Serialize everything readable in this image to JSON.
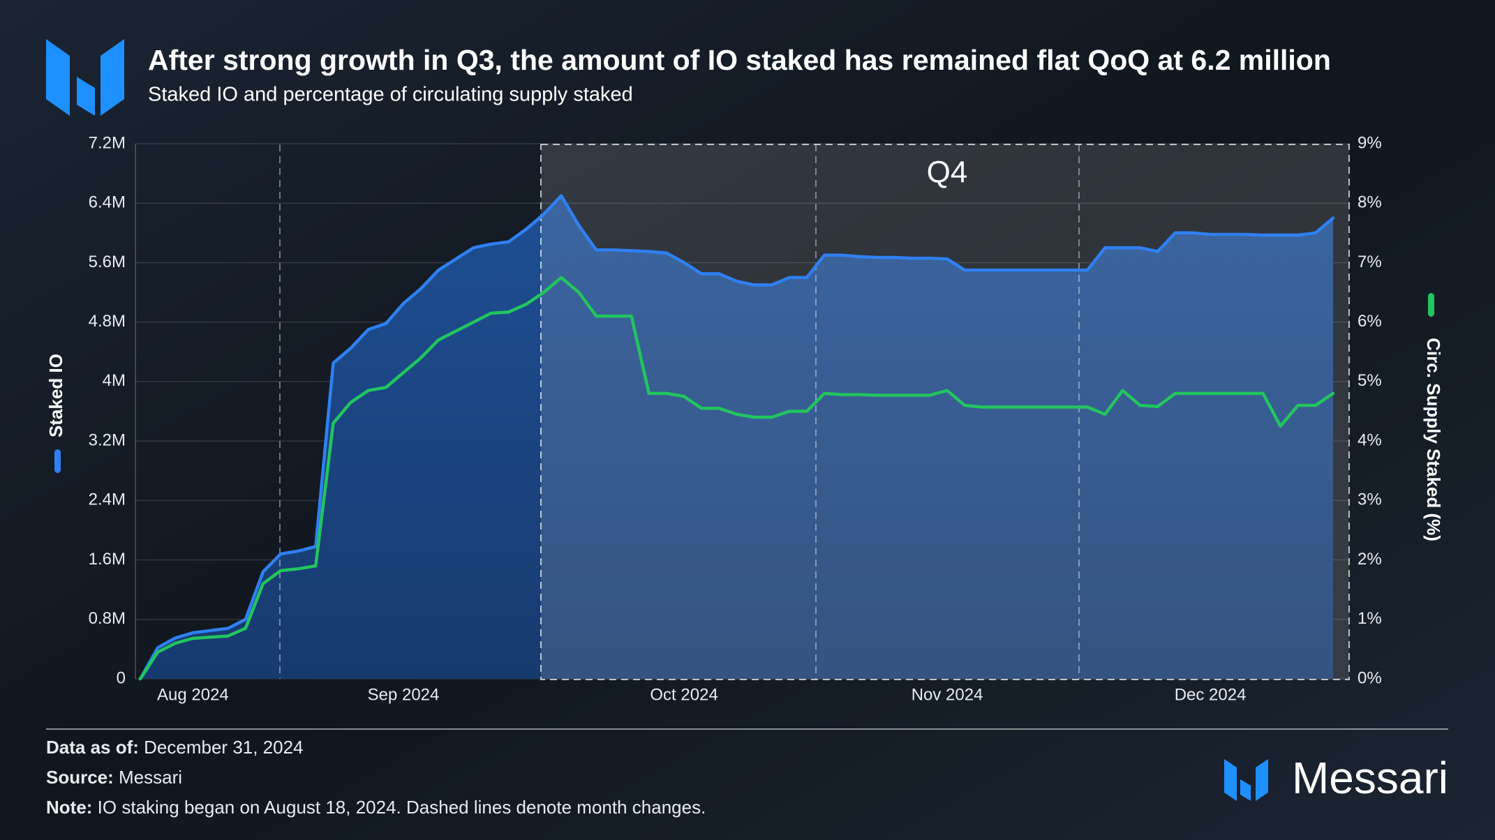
{
  "chart_data": {
    "type": "line",
    "title": "After strong growth in Q3, the amount of IO staked has remained flat QoQ at 6.2 million",
    "subtitle": "Staked IO and percentage of circulating supply staked",
    "annotation": "Q4",
    "categories": [
      null,
      null,
      null,
      "Aug 2024",
      null,
      null,
      null,
      null,
      null,
      null,
      null,
      null,
      null,
      null,
      null,
      "Sep 2024",
      null,
      null,
      null,
      null,
      null,
      null,
      null,
      null,
      null,
      null,
      null,
      null,
      null,
      null,
      null,
      "Oct 2024",
      null,
      null,
      null,
      null,
      null,
      null,
      null,
      null,
      null,
      null,
      null,
      null,
      null,
      null,
      "Nov 2024",
      null,
      null,
      null,
      null,
      null,
      null,
      null,
      null,
      null,
      null,
      null,
      null,
      null,
      null,
      "Dec 2024",
      null,
      null,
      null,
      null,
      null,
      null,
      null
    ],
    "series": [
      {
        "name": "Staked IO",
        "color": "#2f80f2",
        "axis": "y",
        "values": [
          0,
          0.42,
          0.55,
          0.62,
          0.65,
          0.68,
          0.8,
          1.44,
          1.68,
          1.72,
          1.78,
          4.25,
          4.45,
          4.7,
          4.78,
          5.05,
          5.25,
          5.5,
          5.65,
          5.8,
          5.85,
          5.88,
          6.05,
          6.25,
          6.5,
          6.1,
          5.77,
          5.77,
          5.76,
          5.75,
          5.73,
          5.6,
          5.45,
          5.45,
          5.35,
          5.3,
          5.3,
          5.4,
          5.4,
          5.7,
          5.7,
          5.68,
          5.67,
          5.67,
          5.66,
          5.66,
          5.65,
          5.5,
          5.5,
          5.5,
          5.5,
          5.5,
          5.5,
          5.5,
          5.5,
          5.8,
          5.8,
          5.8,
          5.75,
          6.0,
          6.0,
          5.98,
          5.98,
          5.98,
          5.97,
          5.97,
          5.97,
          6.0,
          6.2
        ]
      },
      {
        "name": "Circ. Supply Staked (%)",
        "color": "#22c55e",
        "axis": "y2",
        "values": [
          0,
          0.45,
          0.6,
          0.68,
          0.7,
          0.72,
          0.85,
          1.6,
          1.82,
          1.85,
          1.9,
          4.3,
          4.65,
          4.85,
          4.9,
          5.15,
          5.4,
          5.7,
          5.85,
          6.0,
          6.15,
          6.17,
          6.3,
          6.5,
          6.75,
          6.5,
          6.1,
          6.1,
          6.1,
          4.8,
          4.8,
          4.75,
          4.55,
          4.55,
          4.45,
          4.4,
          4.4,
          4.5,
          4.5,
          4.8,
          4.78,
          4.78,
          4.77,
          4.77,
          4.77,
          4.77,
          4.85,
          4.6,
          4.57,
          4.57,
          4.57,
          4.57,
          4.57,
          4.57,
          4.57,
          4.45,
          4.85,
          4.6,
          4.58,
          4.8,
          4.8,
          4.8,
          4.8,
          4.8,
          4.8,
          4.25,
          4.6,
          4.6,
          4.8
        ]
      }
    ],
    "ylim": [
      0,
      7.2
    ],
    "yticks": [
      0,
      {
        "value": 0.8,
        "label": "0.8M"
      },
      {
        "value": 1.6,
        "label": "1.6M"
      },
      {
        "value": 2.4,
        "label": "2.4M"
      },
      {
        "value": 3.2,
        "label": "3.2M"
      },
      {
        "value": 4,
        "label": "4M"
      },
      {
        "value": 4.8,
        "label": "4.8M"
      },
      {
        "value": 5.6,
        "label": "5.6M"
      },
      {
        "value": 6.4,
        "label": "6.4M"
      },
      {
        "value": 7.2,
        "label": "7.2M"
      }
    ],
    "y2lim": [
      0,
      9
    ],
    "y2ticks": [
      {
        "value": 0,
        "label": "0%"
      },
      {
        "value": 1,
        "label": "1%"
      },
      {
        "value": 2,
        "label": "2%"
      },
      {
        "value": 3,
        "label": "3%"
      },
      {
        "value": 4,
        "label": "4%"
      },
      {
        "value": 5,
        "label": "5%"
      },
      {
        "value": 6,
        "label": "6%"
      },
      {
        "value": 7,
        "label": "7%"
      },
      {
        "value": 8,
        "label": "8%"
      },
      {
        "value": 9,
        "label": "9%"
      }
    ],
    "grid": true
  },
  "footer": {
    "data_as_of_label": "Data as of:",
    "data_as_of": "December 31, 2024",
    "source_label": "Source:",
    "source": "Messari",
    "note_label": "Note:",
    "note": "IO staking began on August 18, 2024. Dashed lines denote month changes.",
    "brand": "Messari"
  }
}
